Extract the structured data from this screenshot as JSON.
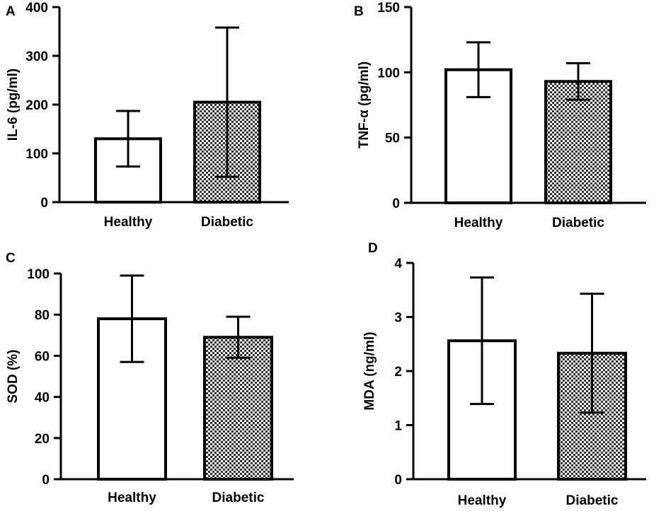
{
  "chart_data": [
    {
      "panel": "A",
      "type": "bar",
      "ylabel": "IL-6 (pg/ml)",
      "categories": [
        "Healthy",
        "Diabetic"
      ],
      "values": [
        130,
        205
      ],
      "errors": [
        57,
        153
      ],
      "ylim": [
        0,
        400
      ],
      "yticks": [
        0,
        100,
        200,
        300,
        400
      ],
      "fills": [
        "white",
        "checker"
      ]
    },
    {
      "panel": "B",
      "type": "bar",
      "ylabel": "TNF-α (pg/ml)",
      "categories": [
        "Healthy",
        "Diabetic"
      ],
      "values": [
        102,
        93
      ],
      "errors": [
        21,
        14
      ],
      "ylim": [
        0,
        150
      ],
      "yticks": [
        0,
        50,
        100,
        150
      ],
      "fills": [
        "white",
        "checker"
      ]
    },
    {
      "panel": "C",
      "type": "bar",
      "ylabel": "SOD (%)",
      "categories": [
        "Healthy",
        "Diabetic"
      ],
      "values": [
        78,
        69
      ],
      "errors": [
        21,
        10
      ],
      "ylim": [
        0,
        100
      ],
      "yticks": [
        0,
        20,
        40,
        60,
        80,
        100
      ],
      "fills": [
        "white",
        "checker"
      ]
    },
    {
      "panel": "D",
      "type": "bar",
      "ylabel": "MDA (ng/ml)",
      "categories": [
        "Healthy",
        "Diabetic"
      ],
      "values": [
        2.56,
        2.33
      ],
      "errors": [
        1.17,
        1.1
      ],
      "ylim": [
        0,
        4
      ],
      "yticks": [
        0,
        1,
        2,
        3,
        4
      ],
      "fills": [
        "white",
        "checker"
      ]
    }
  ],
  "colors": {
    "stroke": "#000000",
    "fill": "#ffffff",
    "checker_dark": "#333333"
  }
}
